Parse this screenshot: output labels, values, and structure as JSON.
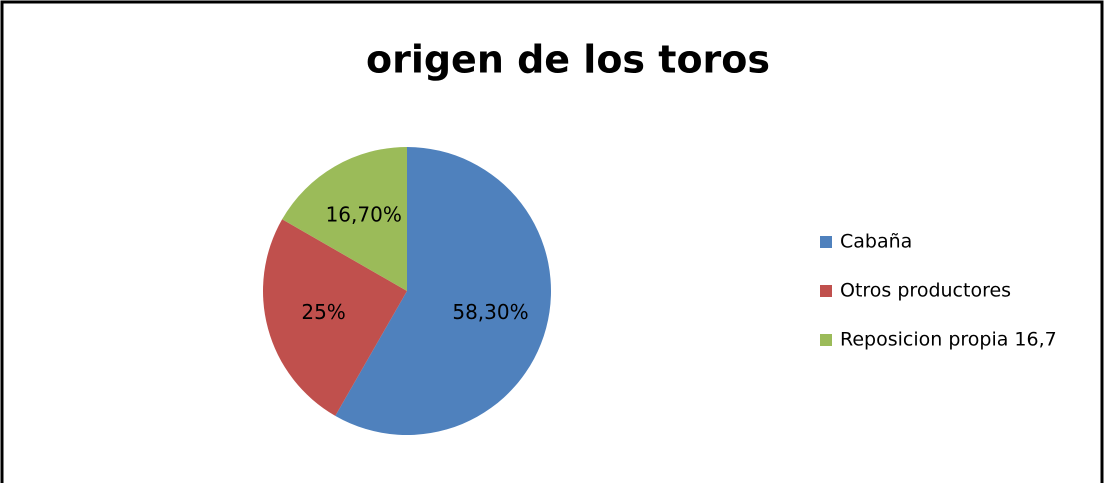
{
  "chart_data": {
    "type": "pie",
    "title": "origen de los toros",
    "categories": [
      "Cabaña",
      "Otros productores",
      "Reposicion propia 16,7"
    ],
    "values": [
      58.3,
      25,
      16.7
    ],
    "value_labels": [
      "58,30%",
      "25%",
      "16,70%"
    ],
    "colors": [
      "#4f81bd",
      "#c0504d",
      "#9bbb59"
    ],
    "legend": "right"
  }
}
